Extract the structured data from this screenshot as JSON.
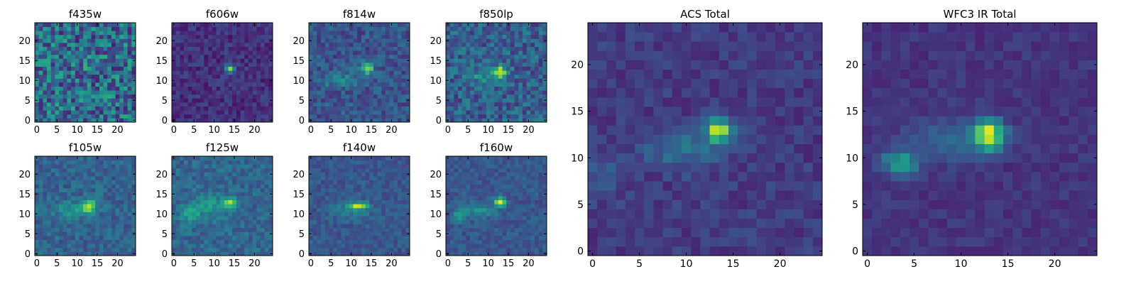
{
  "figure": {
    "background": "#ffffff",
    "colormap": "viridis"
  },
  "chart_data": [
    {
      "type": "heatmap",
      "title": "f435w",
      "grid_size": 25,
      "xticks": [
        0,
        5,
        10,
        15,
        20
      ],
      "yticks": [
        0,
        5,
        10,
        15,
        20
      ],
      "xlim": [
        0,
        25
      ],
      "ylim": [
        0,
        25
      ],
      "noise": 0.26,
      "base": 0.35,
      "sources": [
        {
          "x": 13,
          "y": 13,
          "sx": 1.0,
          "sy": 1.0,
          "amp": 0.25
        }
      ]
    },
    {
      "type": "heatmap",
      "title": "f606w",
      "grid_size": 25,
      "xticks": [
        0,
        5,
        10,
        15,
        20
      ],
      "yticks": [
        0,
        5,
        10,
        15,
        20
      ],
      "xlim": [
        0,
        25
      ],
      "ylim": [
        0,
        25
      ],
      "noise": 0.09,
      "base": 0.14,
      "sources": [
        {
          "x": 14,
          "y": 13,
          "sx": 0.7,
          "sy": 0.7,
          "amp": 0.72
        }
      ]
    },
    {
      "type": "heatmap",
      "title": "f814w",
      "grid_size": 25,
      "xticks": [
        0,
        5,
        10,
        15,
        20
      ],
      "yticks": [
        0,
        5,
        10,
        15,
        20
      ],
      "xlim": [
        0,
        25
      ],
      "ylim": [
        0,
        25
      ],
      "noise": 0.12,
      "base": 0.26,
      "sources": [
        {
          "x": 14,
          "y": 13,
          "sx": 1.0,
          "sy": 0.9,
          "amp": 0.6
        },
        {
          "x": 8,
          "y": 10,
          "sx": 3.5,
          "sy": 1.3,
          "amp": 0.18
        }
      ]
    },
    {
      "type": "heatmap",
      "title": "f850lp",
      "grid_size": 25,
      "xticks": [
        0,
        5,
        10,
        15,
        20
      ],
      "yticks": [
        0,
        5,
        10,
        15,
        20
      ],
      "xlim": [
        0,
        25
      ],
      "ylim": [
        0,
        25
      ],
      "noise": 0.16,
      "base": 0.3,
      "sources": [
        {
          "x": 13,
          "y": 12,
          "sx": 1.0,
          "sy": 1.3,
          "amp": 0.55
        },
        {
          "x": 9,
          "y": 11,
          "sx": 3.0,
          "sy": 1.2,
          "amp": 0.2
        }
      ]
    },
    {
      "type": "heatmap",
      "title": "ACS Total",
      "grid_size": 25,
      "xticks": [
        0,
        5,
        10,
        15,
        20
      ],
      "yticks": [
        0,
        5,
        10,
        15,
        20
      ],
      "xlim": [
        0,
        25
      ],
      "ylim": [
        0,
        25
      ],
      "noise": 0.07,
      "base": 0.17,
      "sources": [
        {
          "x": 13.5,
          "y": 13,
          "sx": 0.9,
          "sy": 0.8,
          "amp": 0.8
        },
        {
          "x": 10,
          "y": 11,
          "sx": 3.0,
          "sy": 1.5,
          "amp": 0.22
        },
        {
          "x": 1,
          "y": 8,
          "sx": 1.5,
          "sy": 1.5,
          "amp": 0.12
        }
      ]
    },
    {
      "type": "heatmap",
      "title": "WFC3 IR Total",
      "grid_size": 25,
      "xticks": [
        0,
        5,
        10,
        15,
        20
      ],
      "yticks": [
        0,
        5,
        10,
        15,
        20
      ],
      "xlim": [
        0,
        25
      ],
      "ylim": [
        0,
        25
      ],
      "noise": 0.05,
      "base": 0.15,
      "sources": [
        {
          "x": 13,
          "y": 12.5,
          "sx": 1.1,
          "sy": 1.1,
          "amp": 0.78
        },
        {
          "x": 3.5,
          "y": 9.5,
          "sx": 1.4,
          "sy": 1.0,
          "amp": 0.38
        },
        {
          "x": 9,
          "y": 12,
          "sx": 3.0,
          "sy": 1.5,
          "amp": 0.2
        }
      ]
    },
    {
      "type": "heatmap",
      "title": "f105w",
      "grid_size": 25,
      "xticks": [
        0,
        5,
        10,
        15,
        20
      ],
      "yticks": [
        0,
        5,
        10,
        15,
        20
      ],
      "xlim": [
        0,
        25
      ],
      "ylim": [
        0,
        25
      ],
      "noise": 0.1,
      "base": 0.32,
      "sources": [
        {
          "x": 13,
          "y": 12,
          "sx": 1.2,
          "sy": 1.2,
          "amp": 0.5
        },
        {
          "x": 9,
          "y": 11,
          "sx": 3.5,
          "sy": 1.5,
          "amp": 0.18
        }
      ]
    },
    {
      "type": "heatmap",
      "title": "f125w",
      "grid_size": 25,
      "xticks": [
        0,
        5,
        10,
        15,
        20
      ],
      "yticks": [
        0,
        5,
        10,
        15,
        20
      ],
      "xlim": [
        0,
        25
      ],
      "ylim": [
        0,
        25
      ],
      "noise": 0.1,
      "base": 0.33,
      "sources": [
        {
          "x": 14,
          "y": 13,
          "sx": 1.0,
          "sy": 1.0,
          "amp": 0.45
        },
        {
          "x": 4,
          "y": 10,
          "sx": 1.5,
          "sy": 1.5,
          "amp": 0.3
        },
        {
          "x": 9,
          "y": 12,
          "sx": 3.0,
          "sy": 2.0,
          "amp": 0.2
        }
      ]
    },
    {
      "type": "heatmap",
      "title": "f140w",
      "grid_size": 25,
      "xticks": [
        0,
        5,
        10,
        15,
        20
      ],
      "yticks": [
        0,
        5,
        10,
        15,
        20
      ],
      "xlim": [
        0,
        25
      ],
      "ylim": [
        0,
        25
      ],
      "noise": 0.08,
      "base": 0.27,
      "sources": [
        {
          "x": 12,
          "y": 12,
          "sx": 1.5,
          "sy": 0.6,
          "amp": 0.6
        },
        {
          "x": 10,
          "y": 11,
          "sx": 3.5,
          "sy": 1.8,
          "amp": 0.15
        }
      ]
    },
    {
      "type": "heatmap",
      "title": "f160w",
      "grid_size": 25,
      "xticks": [
        0,
        5,
        10,
        15,
        20
      ],
      "yticks": [
        0,
        5,
        10,
        15,
        20
      ],
      "xlim": [
        0,
        25
      ],
      "ylim": [
        0,
        25
      ],
      "noise": 0.08,
      "base": 0.27,
      "sources": [
        {
          "x": 13,
          "y": 13,
          "sx": 1.0,
          "sy": 0.8,
          "amp": 0.62
        },
        {
          "x": 3,
          "y": 9.5,
          "sx": 1.0,
          "sy": 1.0,
          "amp": 0.35
        },
        {
          "x": 8,
          "y": 11,
          "sx": 3.0,
          "sy": 1.3,
          "amp": 0.22
        }
      ]
    }
  ]
}
